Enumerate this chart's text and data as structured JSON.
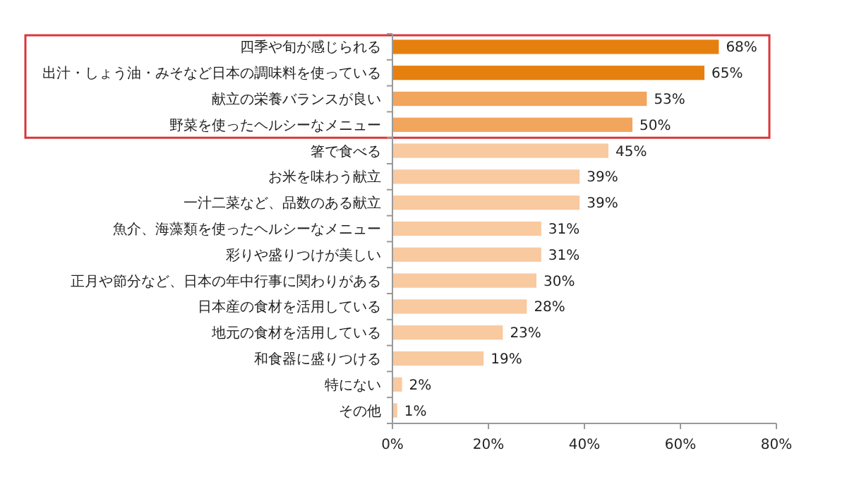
{
  "chart_data": {
    "type": "bar",
    "orientation": "horizontal",
    "categories": [
      "四季や旬が感じられる",
      "出汁・しょう油・みそなど日本の調味料を使っている",
      "献立の栄養バランスが良い",
      "野菜を使ったヘルシーなメニュー",
      "箸で食べる",
      "お米を味わう献立",
      "一汁二菜など、品数のある献立",
      "魚介、海藻類を使ったヘルシーなメニュー",
      "彩りや盛りつけが美しい",
      "正月や節分など、日本の年中行事に関わりがある",
      "日本産の食材を活用している",
      "地元の食材を活用している",
      "和食器に盛りつける",
      "特にない",
      "その他"
    ],
    "values": [
      68,
      65,
      53,
      50,
      45,
      39,
      39,
      31,
      31,
      30,
      28,
      23,
      19,
      2,
      1
    ],
    "colors": [
      "#e5800f",
      "#e5800f",
      "#f2a55c",
      "#f2a55c",
      "#f9c9a0",
      "#f9c9a0",
      "#f9c9a0",
      "#f9c9a0",
      "#f9c9a0",
      "#f9c9a0",
      "#f9c9a0",
      "#f9c9a0",
      "#f9c9a0",
      "#f9c9a0",
      "#f9c9a0"
    ],
    "value_labels": [
      "68%",
      "65%",
      "53%",
      "50%",
      "45%",
      "39%",
      "39%",
      "31%",
      "31%",
      "30%",
      "28%",
      "23%",
      "19%",
      "2%",
      "1%"
    ],
    "xlim": [
      0,
      80
    ],
    "xticks": [
      {
        "value": 0,
        "label": "0%"
      },
      {
        "value": 20,
        "label": "20%"
      },
      {
        "value": 40,
        "label": "40%"
      },
      {
        "value": 60,
        "label": "60%"
      },
      {
        "value": 80,
        "label": "80%"
      }
    ],
    "grid": false
  }
}
